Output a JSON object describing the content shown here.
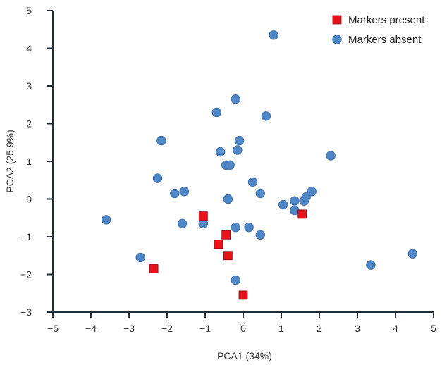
{
  "chart_data": {
    "type": "scatter",
    "title": "",
    "xlabel": "PCA1 (34%)",
    "ylabel": "PCA2 (25.9%)",
    "xlim": [
      -5,
      5
    ],
    "ylim": [
      -3,
      5
    ],
    "xticks": [
      -5,
      -4,
      -3,
      -2,
      -1,
      0,
      1,
      2,
      3,
      4,
      5
    ],
    "yticks": [
      5,
      4,
      3,
      2,
      1,
      0,
      -1,
      -2,
      -3
    ],
    "grid": false,
    "legend_position": "top-right",
    "series": [
      {
        "name": "Markers present",
        "marker": "square",
        "color": "#e8141c",
        "points": [
          [
            -1.05,
            -0.45
          ],
          [
            -0.45,
            -0.95
          ],
          [
            -0.65,
            -1.2
          ],
          [
            -0.4,
            -1.5
          ],
          [
            -2.35,
            -1.85
          ],
          [
            0.0,
            -2.55
          ],
          [
            1.55,
            -0.4
          ]
        ]
      },
      {
        "name": "Markers absent",
        "marker": "circle",
        "color": "#4f86c6",
        "points": [
          [
            0.8,
            4.35
          ],
          [
            -0.2,
            2.65
          ],
          [
            -0.7,
            2.3
          ],
          [
            0.6,
            2.2
          ],
          [
            -2.15,
            1.55
          ],
          [
            -0.1,
            1.55
          ],
          [
            2.3,
            1.15
          ],
          [
            -0.6,
            1.25
          ],
          [
            -0.15,
            1.3
          ],
          [
            -0.45,
            0.9
          ],
          [
            -0.35,
            0.9
          ],
          [
            -2.25,
            0.55
          ],
          [
            0.25,
            0.45
          ],
          [
            -1.8,
            0.15
          ],
          [
            -1.55,
            0.2
          ],
          [
            0.45,
            0.15
          ],
          [
            -0.4,
            0.0
          ],
          [
            1.05,
            -0.15
          ],
          [
            1.35,
            -0.05
          ],
          [
            1.35,
            -0.3
          ],
          [
            1.6,
            -0.05
          ],
          [
            1.65,
            0.05
          ],
          [
            1.8,
            0.2
          ],
          [
            -3.6,
            -0.55
          ],
          [
            -1.6,
            -0.65
          ],
          [
            -1.05,
            -0.65
          ],
          [
            -0.2,
            -0.75
          ],
          [
            0.15,
            -0.75
          ],
          [
            0.45,
            -0.95
          ],
          [
            -2.7,
            -1.55
          ],
          [
            -0.2,
            -2.15
          ],
          [
            3.35,
            -1.75
          ],
          [
            4.45,
            -1.45
          ]
        ]
      }
    ]
  }
}
